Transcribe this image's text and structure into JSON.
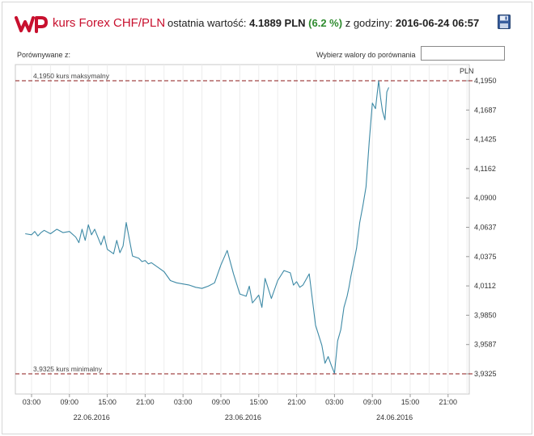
{
  "header": {
    "title": "kurs Forex CHF/PLN",
    "last_label": "ostatnia wartość:",
    "last_value": "4.1889 PLN",
    "change": "(6.2 %)",
    "time_label": "z godziny:",
    "time_value": "2016-06-24 06:57",
    "save_icon": "floppy-disk-icon"
  },
  "controls": {
    "compared_label": "Porównywane z:",
    "pick_label": "Wybierz walory do porównania",
    "pick_value": ""
  },
  "colors": {
    "brand": "#c8102e",
    "change": "#2e8b2e",
    "line": "#3e8aa6",
    "ref_line": "#8b1a1a"
  },
  "chart_data": {
    "type": "line",
    "unit": "PLN",
    "ylim": [
      3.9325,
      4.195
    ],
    "y_ticks": [
      "4,1950",
      "4,1687",
      "4,1425",
      "4,1162",
      "4,0900",
      "4,0637",
      "4,0375",
      "4,0112",
      "3,9850",
      "3,9587",
      "3,9325"
    ],
    "x_ticks": [
      "03:00",
      "09:00",
      "15:00",
      "21:00",
      "03:00",
      "09:00",
      "15:00",
      "21:00",
      "03:00",
      "09:00",
      "15:00",
      "21:00"
    ],
    "date_labels": [
      "22.06.2016",
      "23.06.2016",
      "24.06.2016"
    ],
    "max_label": "4,1950 kurs maksymalny",
    "min_label": "3,9325 kurs minimalny",
    "max_value": 4.195,
    "min_value": 3.9325,
    "series": [
      {
        "x": [
          -1.0,
          0.0,
          0.5,
          1.0,
          1.5,
          2.0,
          3.0,
          4.0,
          5.0,
          6.0,
          7.0,
          7.5,
          8.0,
          8.5,
          9.0,
          9.5,
          10.0,
          11.0,
          11.5,
          12.0,
          13.0,
          13.5,
          14.0,
          14.5,
          15.0,
          16.0,
          17.0,
          17.5,
          18.0,
          18.5,
          19.0,
          20.0,
          21.0,
          22.0,
          23.0,
          24.0,
          25.0,
          26.0,
          27.0,
          28.0,
          29.0,
          30.0,
          31.0,
          32.0,
          33.0,
          34.0,
          34.5,
          35.0,
          36.0,
          36.5,
          37.0,
          38.0,
          39.0,
          40.0,
          41.0,
          41.5,
          42.0,
          42.5,
          43.0,
          44.0,
          45.0,
          46.0,
          46.5,
          47.0,
          47.5,
          48.0,
          48.5,
          49.0,
          49.5,
          50.0,
          50.3,
          50.6,
          51.0,
          51.5,
          52.0,
          52.5,
          53.0,
          53.5,
          54.0,
          54.5,
          55.0,
          55.3,
          55.6,
          56.0,
          56.3,
          56.6
        ],
        "y": [
          4.058,
          4.057,
          4.06,
          4.056,
          4.059,
          4.061,
          4.058,
          4.062,
          4.059,
          4.06,
          4.055,
          4.05,
          4.062,
          4.052,
          4.066,
          4.057,
          4.062,
          4.048,
          4.056,
          4.044,
          4.04,
          4.052,
          4.041,
          4.047,
          4.068,
          4.038,
          4.036,
          4.033,
          4.034,
          4.031,
          4.032,
          4.028,
          4.024,
          4.016,
          4.014,
          4.013,
          4.012,
          4.01,
          4.009,
          4.011,
          4.014,
          4.03,
          4.043,
          4.022,
          4.004,
          4.002,
          4.011,
          3.996,
          4.003,
          3.992,
          4.018,
          4.0,
          4.016,
          4.025,
          4.023,
          4.012,
          4.015,
          4.01,
          4.012,
          4.022,
          3.976,
          3.958,
          3.942,
          3.948,
          3.94,
          3.933,
          3.962,
          3.972,
          3.992,
          4.002,
          4.01,
          4.02,
          4.031,
          4.045,
          4.068,
          4.083,
          4.1,
          4.14,
          4.175,
          4.17,
          4.195,
          4.18,
          4.168,
          4.16,
          4.185,
          4.189
        ]
      }
    ],
    "grid": "vertical"
  }
}
